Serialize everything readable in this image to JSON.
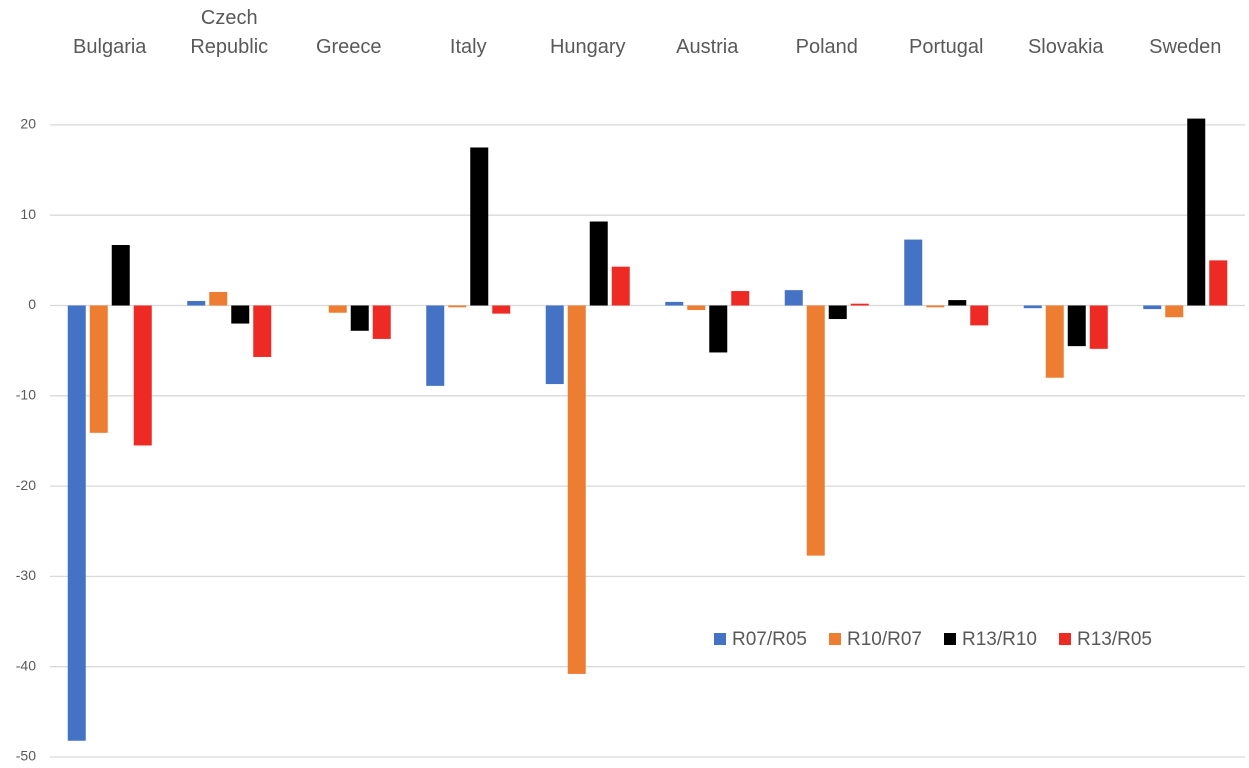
{
  "chart_data": {
    "type": "bar",
    "categories": [
      "Bulgaria",
      "Czech Republic",
      "Greece",
      "Italy",
      "Hungary",
      "Austria",
      "Poland",
      "Portugal",
      "Slovakia",
      "Sweden"
    ],
    "series": [
      {
        "name": "R07/R05",
        "color": "#4472c4",
        "values": [
          -48.2,
          0.5,
          0,
          -8.9,
          -8.7,
          0.4,
          1.7,
          7.3,
          -0.3,
          -0.4
        ]
      },
      {
        "name": "R10/R07",
        "color": "#ed7d31",
        "values": [
          -14.1,
          1.5,
          -0.8,
          -0.2,
          -40.8,
          -0.5,
          -27.7,
          -0.2,
          -8,
          -1.3
        ]
      },
      {
        "name": "R13/R10",
        "color": "#000000",
        "values": [
          6.7,
          -2,
          -2.8,
          17.5,
          9.3,
          -5.2,
          -1.5,
          0.6,
          -4.5,
          20.7
        ]
      },
      {
        "name": "R13/R05",
        "color": "#ee2a24",
        "values": [
          -15.5,
          -5.7,
          -3.7,
          -0.9,
          4.3,
          1.6,
          0.2,
          -2.2,
          -4.8,
          5
        ]
      }
    ],
    "ylim": [
      -50,
      25
    ],
    "yticks": [
      -50,
      -40,
      -30,
      -20,
      -10,
      0,
      10,
      20
    ],
    "grid": true,
    "legend": "lower right"
  }
}
